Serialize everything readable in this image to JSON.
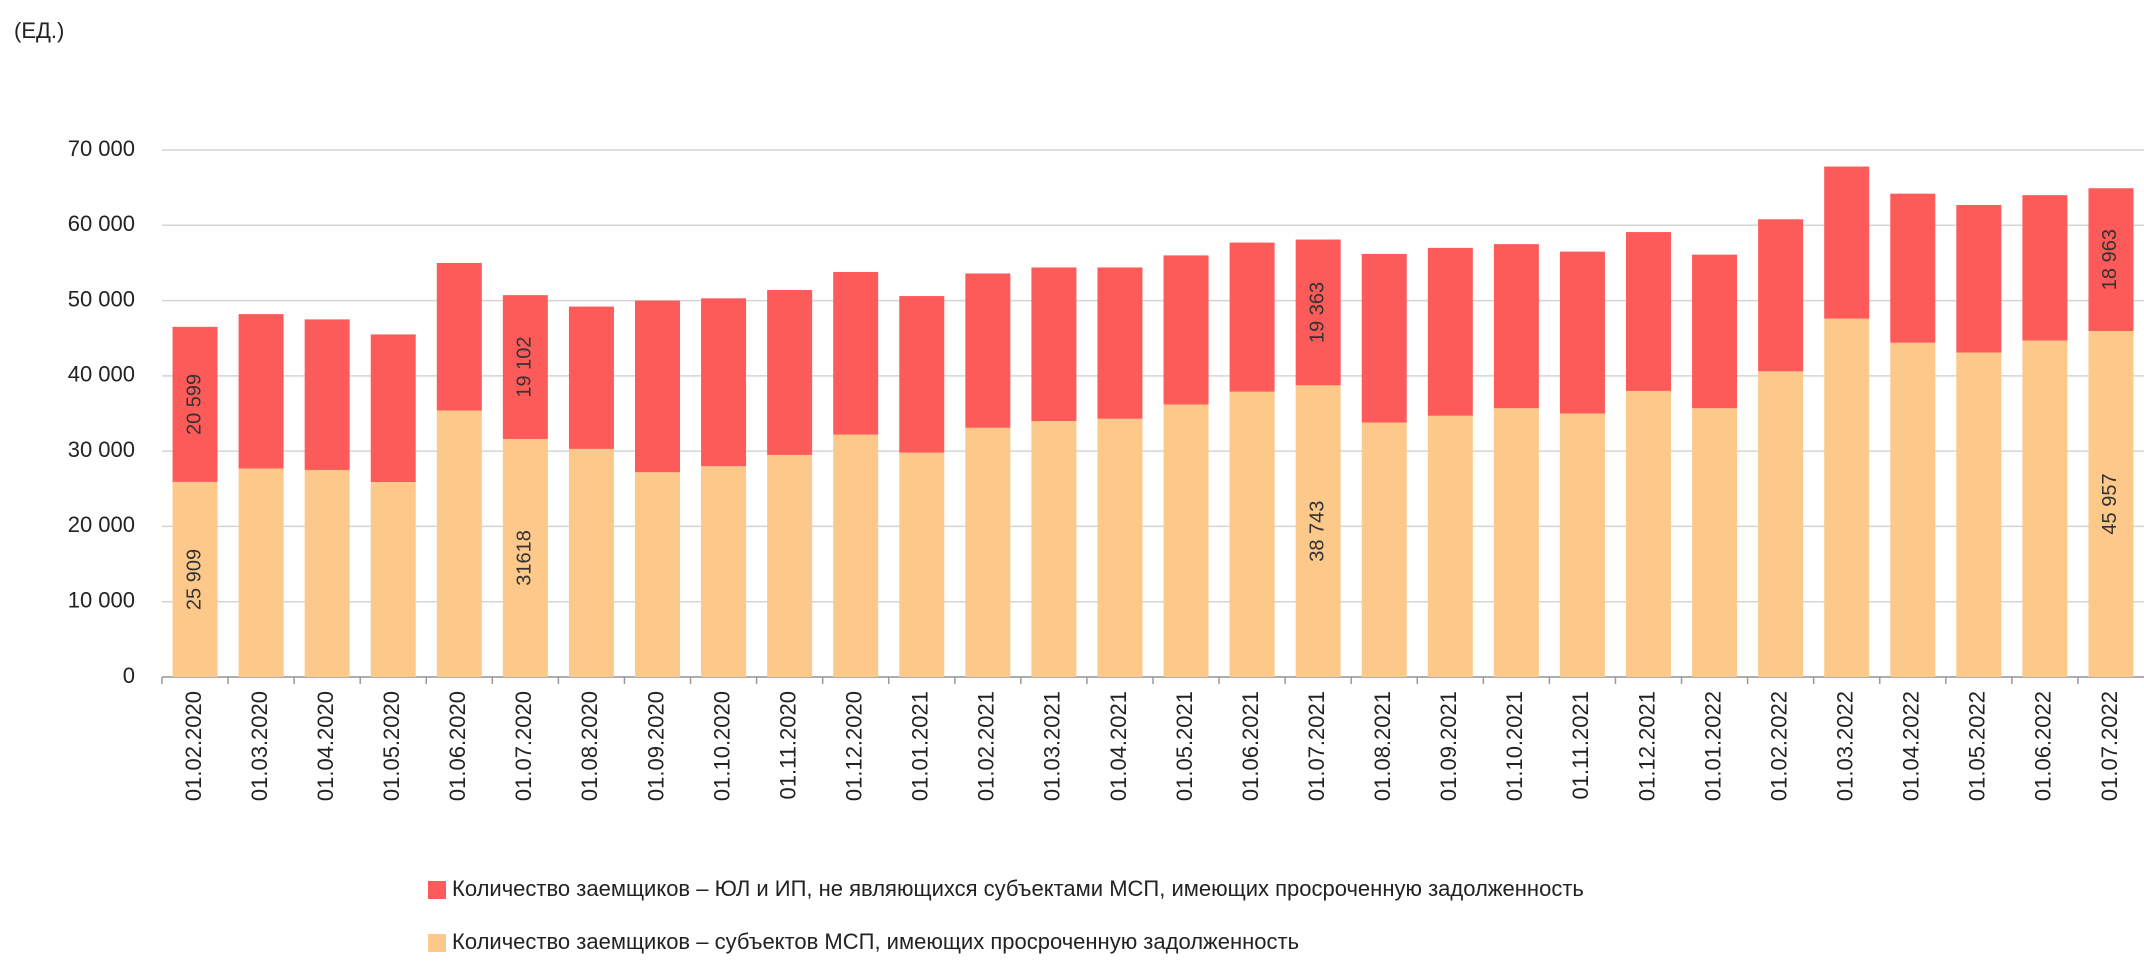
{
  "chart_data": {
    "type": "stacked_bar",
    "y_axis_label": "(ЕД.)",
    "categories": [
      "01.02.2020",
      "01.03.2020",
      "01.04.2020",
      "01.05.2020",
      "01.06.2020",
      "01.07.2020",
      "01.08.2020",
      "01.09.2020",
      "01.10.2020",
      "01.11.2020",
      "01.12.2020",
      "01.01.2021",
      "01.02.2021",
      "01.03.2021",
      "01.04.2021",
      "01.05.2021",
      "01.06.2021",
      "01.07.2021",
      "01.08.2021",
      "01.09.2021",
      "01.10.2021",
      "01.11.2021",
      "01.12.2021",
      "01.01.2022",
      "01.02.2022",
      "01.03.2022",
      "01.04.2022",
      "01.05.2022",
      "01.06.2022",
      "01.07.2022"
    ],
    "series": [
      {
        "name": "Количество заемщиков – субъектов МСП, имеющих просроченную задолженность",
        "color": "#fcc98b",
        "values": [
          25909,
          27700,
          27500,
          25900,
          35400,
          31618,
          30300,
          27200,
          28000,
          29500,
          32200,
          29800,
          33100,
          34000,
          34300,
          36200,
          37900,
          38743,
          33800,
          34700,
          35700,
          35000,
          38000,
          35700,
          40600,
          47600,
          44400,
          43100,
          44700,
          45957
        ],
        "value_labels": [
          "25 909",
          null,
          null,
          null,
          null,
          "31618",
          null,
          null,
          null,
          null,
          null,
          null,
          null,
          null,
          null,
          null,
          null,
          "38 743",
          null,
          null,
          null,
          null,
          null,
          null,
          null,
          null,
          null,
          null,
          null,
          "45 957"
        ]
      },
      {
        "name": "Количество заемщиков – ЮЛ и ИП, не являющихся субъектами МСП, имеющих просроченную задолженность",
        "color": "#fd5a5a",
        "values": [
          20599,
          20500,
          20000,
          19600,
          19600,
          19102,
          18900,
          22800,
          22300,
          21900,
          21600,
          20800,
          20500,
          20400,
          20100,
          19800,
          19800,
          19363,
          22400,
          22300,
          21800,
          21500,
          21100,
          20400,
          20200,
          20200,
          19800,
          19600,
          19300,
          18963
        ],
        "value_labels": [
          "20 599",
          null,
          null,
          null,
          null,
          "19 102",
          null,
          null,
          null,
          null,
          null,
          null,
          null,
          null,
          null,
          null,
          null,
          "19 363",
          null,
          null,
          null,
          null,
          null,
          null,
          null,
          null,
          null,
          null,
          null,
          "18 963"
        ]
      }
    ],
    "ylim": [
      0,
      70000
    ],
    "yticks": [
      0,
      {
        "value": 10000,
        "label": "10 000"
      },
      {
        "value": 20000,
        "label": "20 000"
      },
      {
        "value": 30000,
        "label": "30 000"
      },
      {
        "value": 40000,
        "label": "40 000"
      },
      {
        "value": 50000,
        "label": "50 000"
      },
      {
        "value": 60000,
        "label": "60 000"
      },
      {
        "value": 70000,
        "label": "70 000"
      }
    ],
    "grid": true
  }
}
